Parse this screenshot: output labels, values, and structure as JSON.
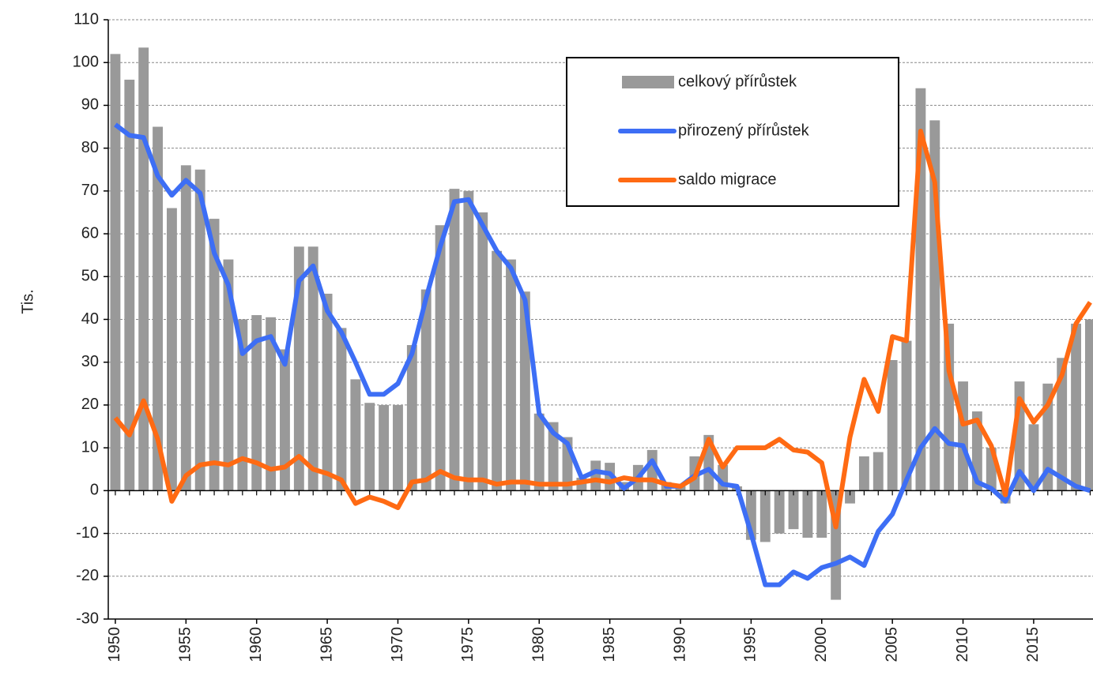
{
  "chart_data": {
    "type": "combo",
    "y_label": "Tis.",
    "x": [
      1950,
      1951,
      1952,
      1953,
      1954,
      1955,
      1956,
      1957,
      1958,
      1959,
      1960,
      1961,
      1962,
      1963,
      1964,
      1965,
      1966,
      1967,
      1968,
      1969,
      1970,
      1971,
      1972,
      1973,
      1974,
      1975,
      1976,
      1977,
      1978,
      1979,
      1980,
      1981,
      1982,
      1983,
      1984,
      1985,
      1986,
      1987,
      1988,
      1989,
      1990,
      1991,
      1992,
      1993,
      1994,
      1995,
      1996,
      1997,
      1998,
      1999,
      2000,
      2001,
      2002,
      2003,
      2004,
      2005,
      2006,
      2007,
      2008,
      2009,
      2010,
      2011,
      2012,
      2013,
      2014,
      2015,
      2016,
      2017,
      2018,
      2019
    ],
    "xlim": [
      1949.5,
      2019.2
    ],
    "xticks": [
      1950,
      1955,
      1960,
      1965,
      1970,
      1975,
      1980,
      1985,
      1990,
      1995,
      2000,
      2005,
      2010,
      2015
    ],
    "ylim": [
      -30,
      110
    ],
    "yticks": [
      -30,
      -20,
      -10,
      0,
      10,
      20,
      30,
      40,
      50,
      60,
      70,
      80,
      90,
      100,
      110
    ],
    "grid": true,
    "legend": "top-right",
    "series": [
      {
        "name": "celkový přírůstek",
        "type": "bar",
        "color": "#999999",
        "values": [
          102,
          96,
          103.5,
          85,
          66,
          76,
          75,
          63.5,
          54,
          40,
          41,
          40.5,
          33,
          57,
          57,
          46,
          38,
          26,
          20.5,
          20,
          20,
          34,
          47,
          62,
          70.5,
          70,
          65,
          56,
          54,
          46.5,
          18,
          16,
          12.5,
          3,
          7,
          6.5,
          2,
          6,
          9.5,
          2,
          1,
          8,
          13,
          6,
          1,
          -11.5,
          -12,
          -10,
          -9,
          -11,
          -11,
          -25.5,
          -3,
          8,
          9,
          30.5,
          35,
          94,
          86.5,
          39,
          25.5,
          18.5,
          10,
          -3,
          25.5,
          15.5,
          25,
          31,
          39,
          40
        ]
      },
      {
        "name": "přirozený přírůstek",
        "type": "line",
        "color": "#3d6ef5",
        "values": [
          85.5,
          83,
          82.5,
          73.5,
          69,
          72.5,
          69.5,
          55.5,
          48,
          32,
          35,
          36,
          29.5,
          49,
          52.5,
          42,
          37,
          30,
          22.5,
          22.5,
          25,
          32,
          45,
          57,
          67.5,
          68,
          62,
          56,
          52,
          44.5,
          18,
          13.5,
          11,
          3,
          4.5,
          4,
          0.5,
          3,
          7,
          1,
          1,
          3.5,
          5,
          1.5,
          1,
          -10,
          -22,
          -22,
          -19,
          -20.5,
          -18,
          -17,
          -15.5,
          -17.5,
          -9.5,
          -5.5,
          2.5,
          10,
          14.5,
          11,
          10.5,
          2,
          0.5,
          -2.5,
          4.5,
          0,
          5,
          3,
          1,
          0
        ]
      },
      {
        "name": "saldo migrace",
        "type": "line",
        "color": "#ff6a13",
        "values": [
          17,
          13,
          21,
          12,
          -2.5,
          3.5,
          6,
          6.5,
          6,
          7.5,
          6.5,
          5,
          5.5,
          8,
          5,
          4,
          2.5,
          -3,
          -1.5,
          -2.5,
          -4,
          2,
          2.5,
          4.5,
          3,
          2.5,
          2.5,
          1.5,
          2,
          2,
          1.5,
          1.5,
          1.5,
          2,
          2.5,
          2,
          3,
          2.5,
          2.5,
          1.5,
          1,
          3,
          12,
          5.5,
          10,
          10,
          10,
          12,
          9.5,
          9,
          6.5,
          -8.5,
          12.5,
          26,
          18.5,
          36,
          35,
          84,
          72,
          28,
          15.5,
          16.5,
          10.5,
          -1,
          21.5,
          16,
          20,
          27,
          39,
          44
        ]
      }
    ]
  }
}
